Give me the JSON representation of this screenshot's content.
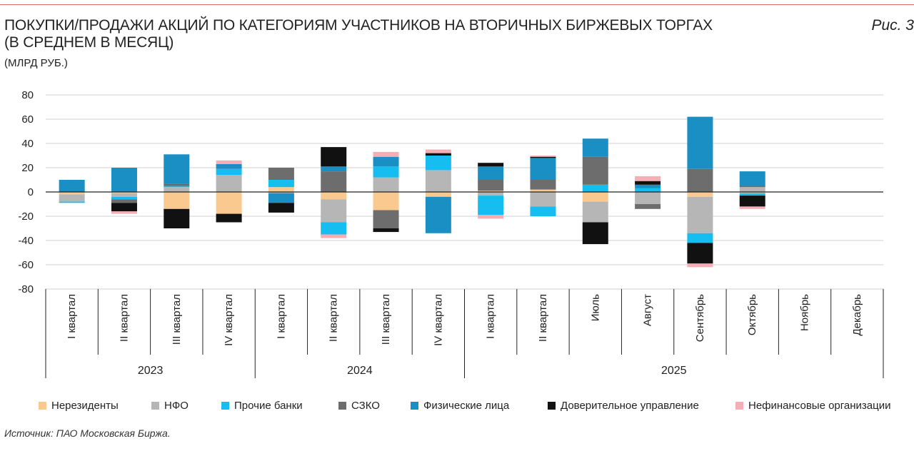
{
  "header": {
    "title_line1": "ПОКУПКИ/ПРОДАЖИ АКЦИЙ ПО КАТЕГОРИЯМ УЧАСТНИКОВ НА ВТОРИЧНЫХ БИРЖЕВЫХ ТОРГАХ",
    "title_line2": "(В СРЕДНЕМ В МЕСЯЦ)",
    "units": "(МЛРД РУБ.)",
    "figure_label": "Рис. 3"
  },
  "source": "Источник: ПАО Московская Биржа.",
  "colors": {
    "nonresidents": "#f9c98f",
    "nfo": "#b6b6b6",
    "other_banks": "#16bdf0",
    "szko": "#6d6d6d",
    "individuals": "#1a8fc4",
    "trust": "#111111",
    "nonfin": "#f6aeb5",
    "grid": "#cfcfcf",
    "axis": "#222222",
    "rule": "#e36b6b"
  },
  "chart_data": {
    "type": "bar",
    "stacked": true,
    "title": "ПОКУПКИ/ПРОДАЖИ АКЦИЙ ПО КАТЕГОРИЯМ УЧАСТНИКОВ НА ВТОРИЧНЫХ БИРЖЕВЫХ ТОРГАХ (В СРЕДНЕМ В МЕСЯЦ)",
    "ylabel": "(МЛРД РУБ.)",
    "ylim": [
      -80,
      80
    ],
    "yticks": [
      80,
      60,
      40,
      20,
      0,
      -20,
      -40,
      -60,
      -80
    ],
    "grid": true,
    "legend_position": "bottom",
    "categories": [
      "I квартал",
      "II квартал",
      "III квартал",
      "IV квартал",
      "I квартал",
      "II квартал",
      "III квартал",
      "IV квартал",
      "I квартал",
      "II квартал",
      "Июль",
      "Август",
      "Сентябрь",
      "Октябрь",
      "Ноябрь",
      "Декабрь"
    ],
    "groups": [
      {
        "label": "2023",
        "start": 0,
        "end": 3
      },
      {
        "label": "2024",
        "start": 4,
        "end": 7
      },
      {
        "label": "2025",
        "start": 8,
        "end": 15
      }
    ],
    "series": [
      {
        "name": "Нерезиденты",
        "color": "#f9c98f",
        "values": [
          -2,
          -1,
          -14,
          -18,
          4,
          -6,
          -15,
          -4,
          1,
          2,
          -8,
          0,
          -4,
          -1,
          0,
          0
        ]
      },
      {
        "name": "НФО",
        "color": "#b6b6b6",
        "values": [
          -6,
          -3,
          4,
          14,
          -1,
          -19,
          12,
          18,
          -3,
          -12,
          -17,
          -10,
          -30,
          4,
          0,
          0
        ]
      },
      {
        "name": "Прочие банки",
        "color": "#16bdf0",
        "values": [
          -1,
          -2,
          1,
          5,
          6,
          -10,
          9,
          12,
          -16,
          -8,
          6,
          3,
          -8,
          -2,
          0,
          0
        ]
      },
      {
        "name": "СЗКО",
        "color": "#6d6d6d",
        "values": [
          0,
          -3,
          2,
          0,
          10,
          17,
          -15,
          0,
          9,
          8,
          23,
          -4,
          19,
          1,
          0,
          0
        ]
      },
      {
        "name": "Физические лица",
        "color": "#1a8fc4",
        "values": [
          10,
          20,
          24,
          4,
          -8,
          4,
          8,
          -30,
          11,
          18,
          15,
          3,
          43,
          12,
          0,
          0
        ]
      },
      {
        "name": "Доверительное управление",
        "color": "#111111",
        "values": [
          0,
          -7,
          -16,
          -7,
          -8,
          16,
          -3,
          2,
          3,
          1,
          -18,
          3,
          -17,
          -9,
          0,
          0
        ]
      },
      {
        "name": "Нефинансовые организации",
        "color": "#f6aeb5",
        "values": [
          0,
          -2,
          0,
          3,
          0,
          -3,
          4,
          3,
          -3,
          1,
          0,
          4,
          -3,
          -2,
          0,
          0
        ]
      }
    ]
  }
}
